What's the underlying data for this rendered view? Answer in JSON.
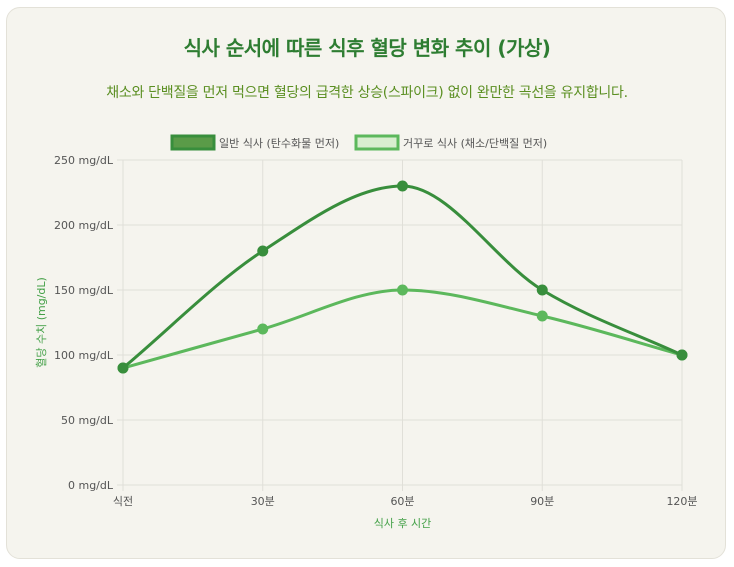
{
  "header": {
    "title": "식사 순서에 따른 식후 혈당 변화 추이 (가상)",
    "subtitle": "채소와 단백질을 먼저 먹으면 혈당의 급격한 상승(스파이크) 없이 완만한 곡선을 유지합니다."
  },
  "colors": {
    "series1": "#388e3c",
    "series2": "#5cb85c",
    "series1_fill": "#5a9b48",
    "series2_fill": "#d8eecf",
    "grid": "#e0dfd8",
    "axis_title": "#43a047"
  },
  "chart_data": {
    "type": "line",
    "categories": [
      "식전",
      "30분",
      "60분",
      "90분",
      "120분"
    ],
    "series": [
      {
        "name": "일반 식사 (탄수화물 먼저)",
        "values": [
          90,
          180,
          230,
          150,
          100
        ]
      },
      {
        "name": "거꾸로 식사 (채소/단백질 먼저)",
        "values": [
          90,
          120,
          150,
          130,
          100
        ]
      }
    ],
    "xlabel": "식사 후 시간",
    "ylabel": "혈당 수치 (mg/dL)",
    "ylim": [
      0,
      250
    ],
    "ytick_step": 50,
    "ytick_suffix": " mg/dL",
    "grid": true,
    "legend": "top-center"
  }
}
